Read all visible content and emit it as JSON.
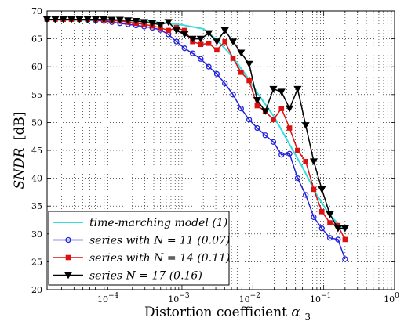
{
  "chart_data": {
    "type": "line",
    "x_scale": "log",
    "xlim": [
      1.25e-05,
      1
    ],
    "ylim": [
      20,
      70
    ],
    "grid": true,
    "xlabel": "Distortion coefficient",
    "xlabel_symbol": "α",
    "xlabel_subscript": "3",
    "ylabel": "SNDR",
    "ylabel_unit": "[dB]",
    "x_ticks": [
      {
        "value": 0.0001,
        "base": "10",
        "exp": "−4"
      },
      {
        "value": 0.001,
        "base": "10",
        "exp": "−3"
      },
      {
        "value": 0.01,
        "base": "10",
        "exp": "−2"
      },
      {
        "value": 0.1,
        "base": "10",
        "exp": "−1"
      },
      {
        "value": 1,
        "base": "10",
        "exp": "0"
      }
    ],
    "y_ticks": [
      "20",
      "25",
      "30",
      "35",
      "40",
      "45",
      "50",
      "55",
      "60",
      "65",
      "70"
    ],
    "legend_position": "bottom-left",
    "series": [
      {
        "name": "time-marching model (1)",
        "color": "#33dddd",
        "marker": "none",
        "x": [
          1.25e-05,
          0.0001,
          0.0003,
          0.0006,
          0.001,
          0.002,
          0.003,
          0.005,
          0.008,
          0.012,
          0.02,
          0.03,
          0.05,
          0.08,
          0.12,
          0.2
        ],
        "y": [
          68.4,
          68.3,
          68.2,
          67.8,
          67.5,
          66.8,
          65.0,
          62.0,
          58.5,
          55.0,
          51.0,
          47.0,
          42.0,
          37.0,
          33.5,
          30.5
        ]
      },
      {
        "name": "series with N = 11 (0.07)",
        "color": "#2222dd",
        "marker": "circle",
        "x": [
          1.25e-05,
          1.63e-05,
          2.12e-05,
          2.76e-05,
          3.59e-05,
          4.67e-05,
          6.07e-05,
          7.89e-05,
          0.0001026,
          0.0001333,
          0.0001733,
          0.0002253,
          0.0002929,
          0.0003808,
          0.000495,
          0.0006435,
          0.0008366,
          0.0010875,
          0.0014138,
          0.0018379,
          0.0023893,
          0.0031061,
          0.0040379,
          0.0052493,
          0.0068241,
          0.0088713,
          0.0115327,
          0.0149925,
          0.0194903,
          0.0253373,
          0.0329385,
          0.04282,
          0.055666,
          0.0723657,
          0.0940754,
          0.1222981,
          0.1589875,
          0.2
        ],
        "y": [
          68.5,
          68.5,
          68.5,
          68.5,
          68.5,
          68.4,
          68.3,
          68.2,
          68.0,
          67.8,
          67.6,
          67.4,
          67.2,
          67.0,
          66.6,
          65.8,
          64.5,
          63.3,
          62.4,
          61.4,
          60.0,
          58.7,
          57.0,
          55.0,
          52.5,
          50.5,
          49.0,
          47.7,
          46.5,
          44.2,
          44.4,
          40.0,
          37.0,
          33.0,
          31.0,
          29.3,
          29.0,
          25.5
        ]
      },
      {
        "name": "series with N = 14 (0.11)",
        "color": "#dd1111",
        "marker": "square",
        "x": [
          1.25e-05,
          1.63e-05,
          2.12e-05,
          2.76e-05,
          3.59e-05,
          4.67e-05,
          6.07e-05,
          7.89e-05,
          0.0001026,
          0.0001333,
          0.0001733,
          0.0002253,
          0.0002929,
          0.0003808,
          0.000495,
          0.0006435,
          0.0008366,
          0.0010875,
          0.0014138,
          0.0018379,
          0.0023893,
          0.0031061,
          0.0040379,
          0.0052493,
          0.0068241,
          0.0088713,
          0.0115327,
          0.0149925,
          0.0194903,
          0.0253373,
          0.0329385,
          0.04282,
          0.055666,
          0.0723657,
          0.0940754,
          0.1222981,
          0.1589875,
          0.2
        ],
        "y": [
          68.5,
          68.5,
          68.5,
          68.5,
          68.5,
          68.5,
          68.5,
          68.4,
          68.3,
          68.2,
          68.0,
          67.8,
          67.6,
          67.3,
          67.0,
          66.5,
          67.0,
          66.5,
          64.5,
          64.0,
          64.2,
          63.0,
          64.5,
          61.5,
          59.0,
          57.5,
          53.0,
          52.0,
          50.5,
          52.5,
          49.0,
          45.0,
          43.0,
          38.0,
          34.0,
          32.0,
          31.5,
          29.0
        ]
      },
      {
        "name": "series N = 17 (0.16)",
        "color": "#000000",
        "marker": "triangle-down",
        "x": [
          1.25e-05,
          1.63e-05,
          2.12e-05,
          2.76e-05,
          3.59e-05,
          4.67e-05,
          6.07e-05,
          7.89e-05,
          0.0001026,
          0.0001333,
          0.0001733,
          0.0002253,
          0.0002929,
          0.0003808,
          0.000495,
          0.0006435,
          0.0008366,
          0.0010875,
          0.0014138,
          0.0018379,
          0.0023893,
          0.0031061,
          0.0040379,
          0.0052493,
          0.0068241,
          0.0088713,
          0.0115327,
          0.0149925,
          0.0194903,
          0.0253373,
          0.0329385,
          0.04282,
          0.055666,
          0.0723657,
          0.0940754,
          0.1222981,
          0.1589875,
          0.2
        ],
        "y": [
          68.5,
          68.5,
          68.5,
          68.5,
          68.5,
          68.5,
          68.5,
          68.5,
          68.4,
          68.4,
          68.3,
          68.2,
          68.0,
          67.8,
          67.5,
          68.0,
          66.5,
          65.8,
          65.0,
          65.0,
          66.0,
          64.5,
          66.5,
          64.5,
          62.5,
          60.5,
          54.0,
          52.0,
          56.0,
          55.5,
          52.5,
          56.0,
          49.5,
          43.0,
          38.0,
          33.5,
          31.0,
          31.0
        ]
      }
    ]
  }
}
